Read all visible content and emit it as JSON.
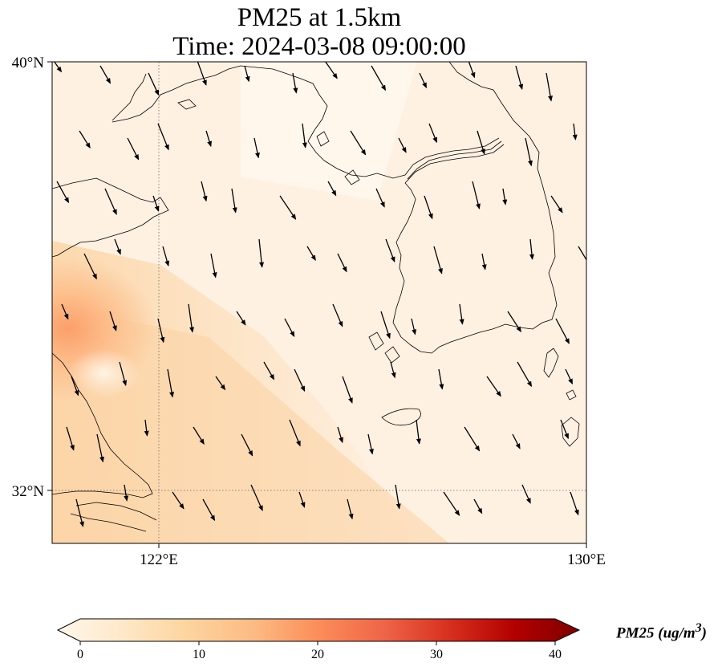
{
  "title": {
    "line1": "PM25 at 1.5km",
    "line2": "Time: 2024-03-08 09:00:00"
  },
  "axes": {
    "lat_ticks": [
      {
        "value": 40,
        "label": "40°N"
      },
      {
        "value": 32,
        "label": "32°N"
      }
    ],
    "lon_ticks": [
      {
        "value": 122,
        "label": "122°E"
      },
      {
        "value": 130,
        "label": "130°E"
      }
    ],
    "lon_range": [
      120,
      130
    ],
    "lat_range": [
      31,
      40
    ],
    "gridlines": "dotted"
  },
  "colorbar": {
    "label": "PM25 (ug/m",
    "label_sup": "3",
    "label_tail": ")",
    "ticks": [
      "0",
      "10",
      "20",
      "30",
      "40"
    ],
    "range": [
      0,
      40
    ],
    "extend": "both",
    "colormap": [
      "#fff7ec",
      "#fee8c8",
      "#fdd49e",
      "#fdbb84",
      "#fc8d59",
      "#ef6548",
      "#d7301f",
      "#b30000",
      "#7f0000"
    ]
  },
  "field": {
    "description_units": "ug/m3",
    "background_value": 3,
    "peak_values": [
      {
        "lon": 120.2,
        "lat": 35.6,
        "value": 16
      },
      {
        "lon": 120.4,
        "lat": 33.9,
        "value": 9
      }
    ],
    "plume_value": 9
  },
  "wind": {
    "dominant_direction": "north-westerly",
    "arrow_count": 96
  }
}
